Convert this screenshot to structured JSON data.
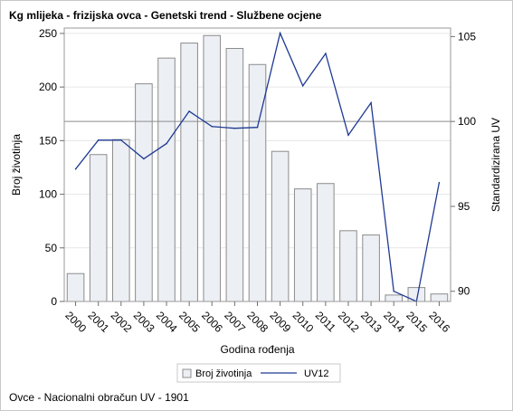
{
  "title": "Kg mlijeka - frizijska ovca - Genetski trend - Službene ocjene",
  "footnote": "Ovce - Nacionalni obračun UV - 1901",
  "chart_data": {
    "type": "bar+line",
    "title": "Kg mlijeka - frizijska ovca - Genetski trend - Službene ocjene",
    "xlabel": "Godina rođenja",
    "ylabel": "Broj životinja",
    "y2label": "Standardizirana UV",
    "categories": [
      "2000",
      "2001",
      "2002",
      "2003",
      "2004",
      "2005",
      "2006",
      "2007",
      "2008",
      "2009",
      "2010",
      "2011",
      "2012",
      "2013",
      "2014",
      "2015",
      "2016"
    ],
    "ylim": [
      0,
      255
    ],
    "yticks": [
      0,
      50,
      100,
      150,
      200,
      250
    ],
    "y2lim": [
      89.4,
      105.5
    ],
    "y2ticks": [
      90,
      95,
      100,
      105
    ],
    "reference_line_y2": 100,
    "grid": "horizontal",
    "legend_position": "bottom",
    "series": [
      {
        "name": "Broj životinja",
        "type": "bar",
        "axis": "left",
        "color": "#eceff4",
        "stroke": "#8c8c8c",
        "values": [
          26,
          137,
          151,
          203,
          227,
          241,
          248,
          236,
          221,
          140,
          105,
          110,
          66,
          62,
          6,
          13,
          7
        ]
      },
      {
        "name": "UV12",
        "type": "line",
        "axis": "right",
        "color": "#1f3a93",
        "values": [
          97.2,
          98.9,
          98.9,
          97.8,
          98.7,
          100.6,
          99.7,
          99.6,
          99.65,
          105.2,
          102.1,
          104.0,
          99.2,
          101.1,
          90.0,
          89.4,
          96.4
        ]
      }
    ]
  }
}
